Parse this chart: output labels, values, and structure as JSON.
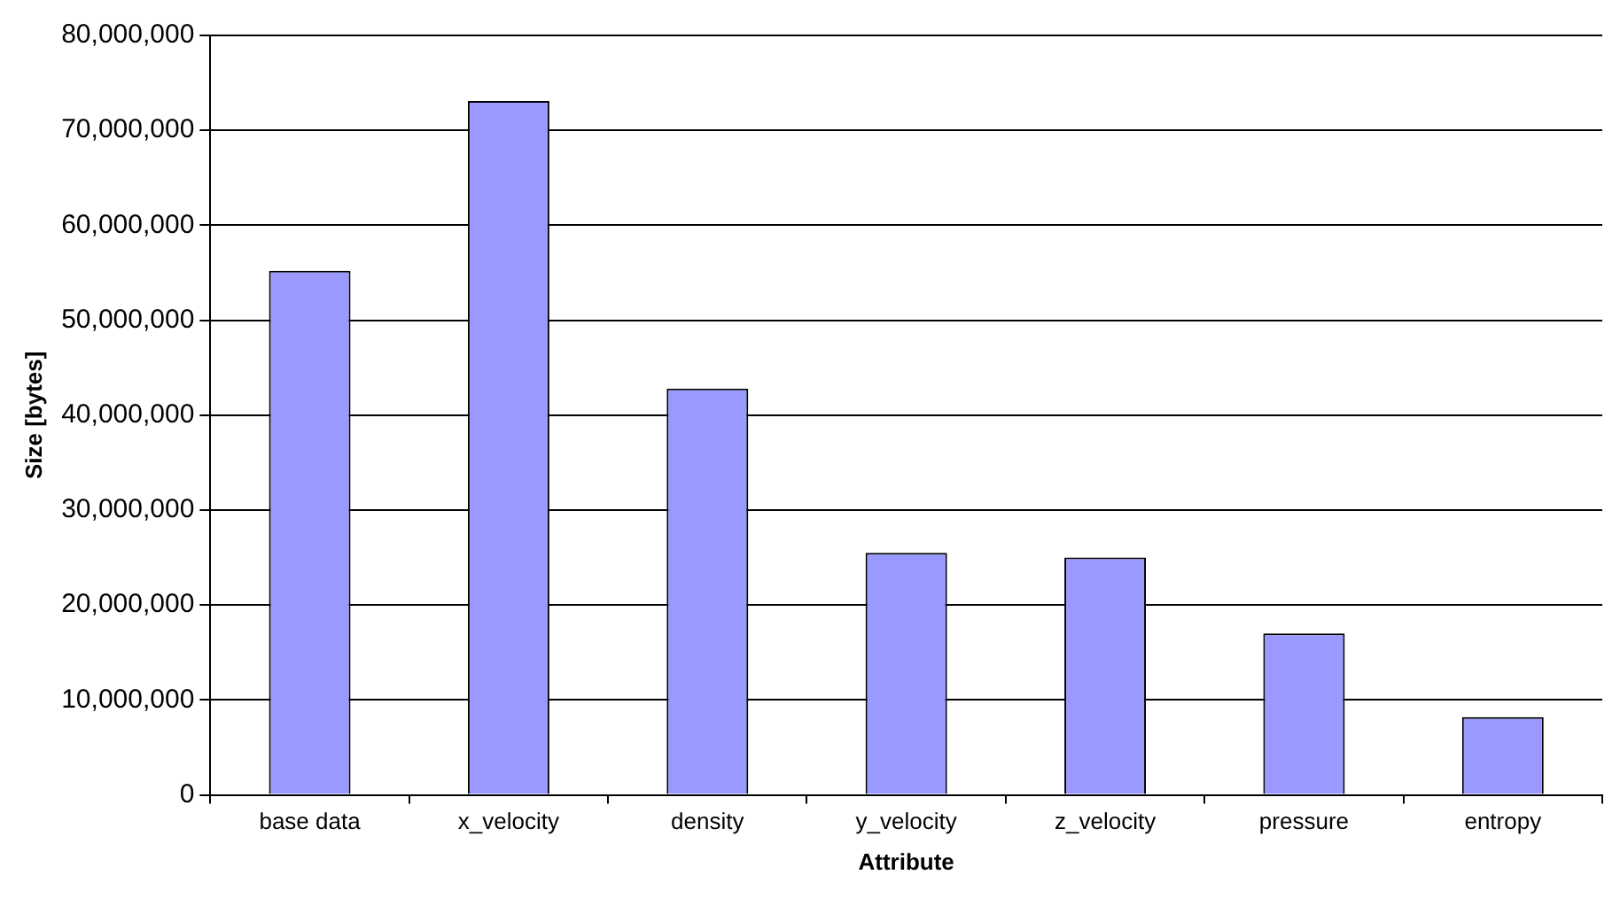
{
  "chart_data": {
    "type": "bar",
    "xlabel": "Attribute",
    "ylabel": "Size [bytes]",
    "categories": [
      "base data",
      "x_velocity",
      "density",
      "y_velocity",
      "z_velocity",
      "pressure",
      "entropy"
    ],
    "values": [
      55200000,
      73100000,
      42800000,
      25500000,
      25000000,
      17000000,
      8200000
    ],
    "color": "#9999ff",
    "ylim": [
      0,
      80000000
    ],
    "yticks": [
      0,
      {
        "value": 10000000,
        "label": "10,000,000"
      },
      {
        "value": 20000000,
        "label": "20,000,000"
      },
      {
        "value": 30000000,
        "label": "30,000,000"
      },
      {
        "value": 40000000,
        "label": "40,000,000"
      },
      {
        "value": 50000000,
        "label": "50,000,000"
      },
      {
        "value": 60000000,
        "label": "60,000,000"
      },
      {
        "value": 70000000,
        "label": "70,000,000"
      },
      {
        "value": 80000000,
        "label": "80,000,000"
      }
    ],
    "grid": "y",
    "legend": false
  }
}
